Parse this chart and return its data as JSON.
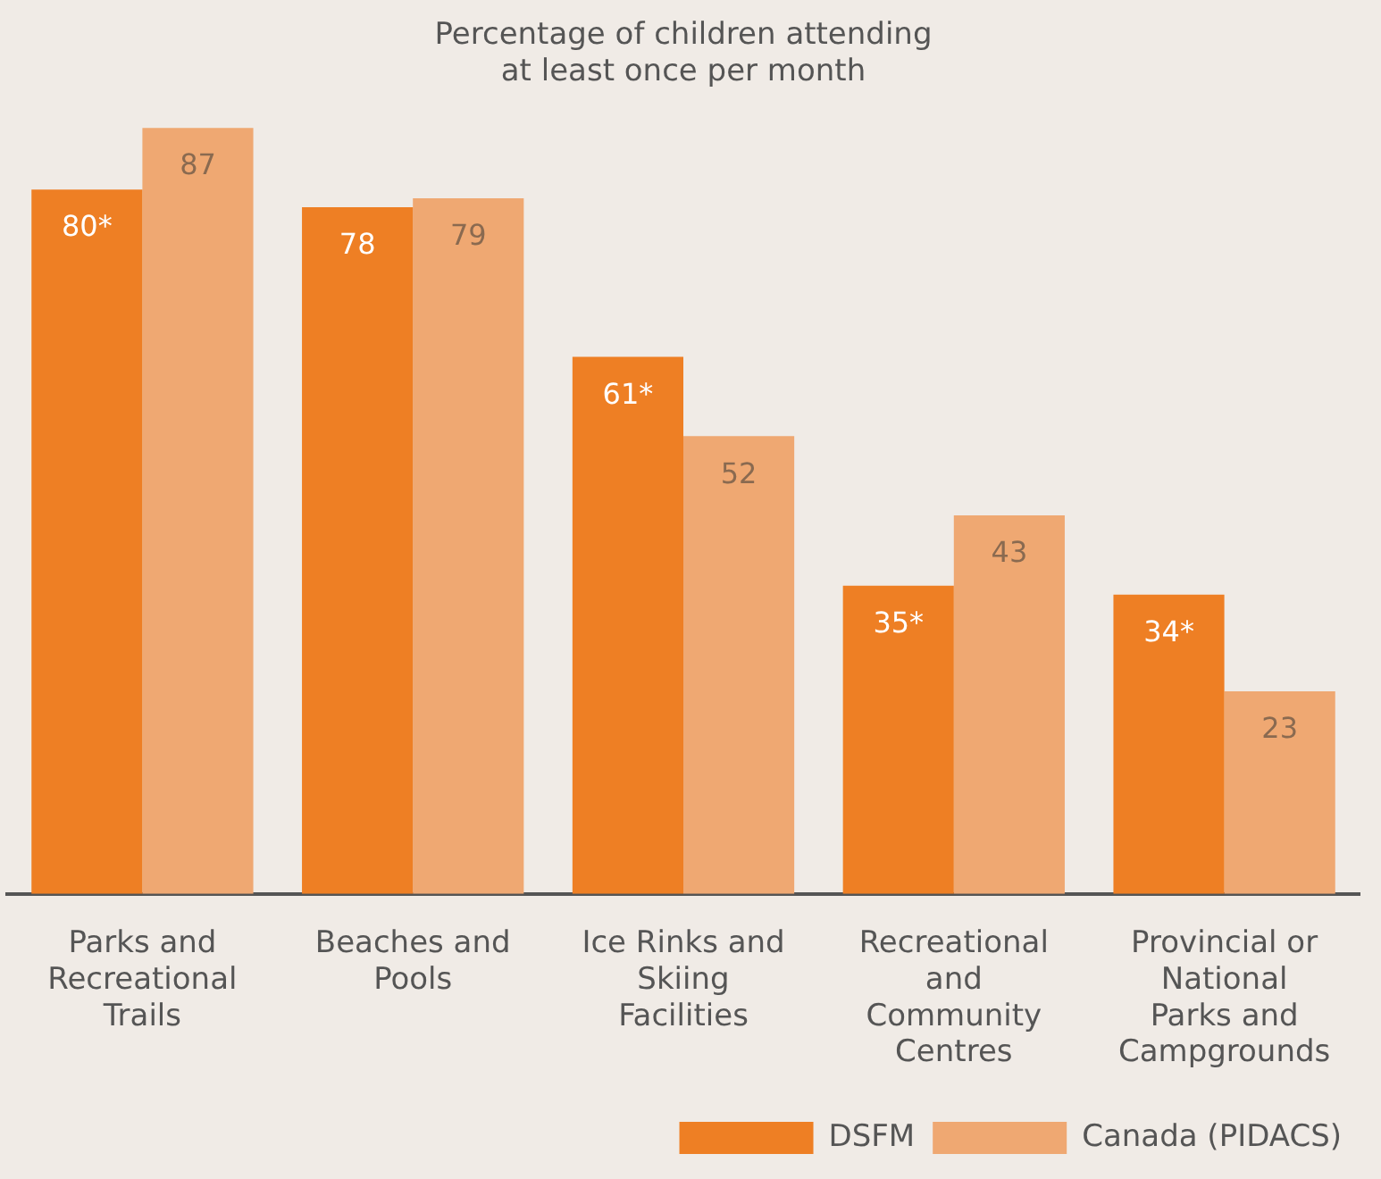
{
  "chart_data": {
    "type": "bar",
    "title": "Percentage of children attending at least once per month",
    "categories": [
      "Parks and Recreational Trails",
      "Beaches and Pools",
      "Ice Rinks and Skiing Facilities",
      "Recreational and Community Centres",
      "Provincial or National Parks and Campgrounds"
    ],
    "series": [
      {
        "name": "DSFM",
        "color": "#ee7f24",
        "values": [
          80,
          78,
          61,
          35,
          34
        ],
        "value_labels": [
          "80*",
          "78",
          "61*",
          "35*",
          "34*"
        ]
      },
      {
        "name": "Canada (PIDACS)",
        "color": "#efa872",
        "values": [
          87,
          79,
          52,
          43,
          23
        ],
        "value_labels": [
          "87",
          "79",
          "52",
          "43",
          "23"
        ]
      }
    ],
    "grid": false,
    "legend": "bottom right"
  }
}
